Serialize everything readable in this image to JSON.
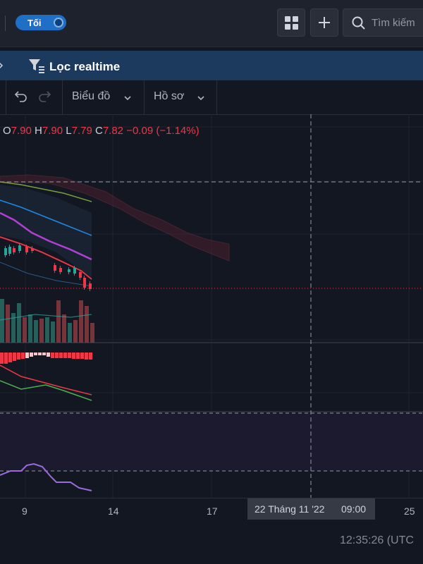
{
  "topbar": {
    "theme_toggle_label": "Tối",
    "search_placeholder": "Tìm kiếm"
  },
  "filter_bar": {
    "label": "Lọc realtime"
  },
  "toolbar": {
    "chart_menu": "Biểu đồ",
    "profile_menu": "Hồ sơ"
  },
  "ohlc": {
    "o_label": "O",
    "o": "7.90",
    "h_label": "H",
    "h": "7.90",
    "l_label": "L",
    "l": "7.79",
    "c_label": "C",
    "c": "7.82",
    "change": "−0.09 (−1.14%)"
  },
  "x_axis": {
    "ticks": [
      "9",
      "14",
      "17",
      "25"
    ],
    "crosshair_date": "22 Tháng 11 '22",
    "crosshair_time": "09:00"
  },
  "status": {
    "clock": "12:35:26 (UTC"
  },
  "colors": {
    "up": "#26a69a",
    "down": "#f23645",
    "accent": "#2962ff",
    "rsi": "#9c6ade"
  },
  "chart_data": {
    "type": "line",
    "title": "",
    "series": [
      {
        "values": [
          7.95,
          7.93,
          7.92,
          7.96,
          7.9,
          7.82
        ]
      }
    ]
  }
}
